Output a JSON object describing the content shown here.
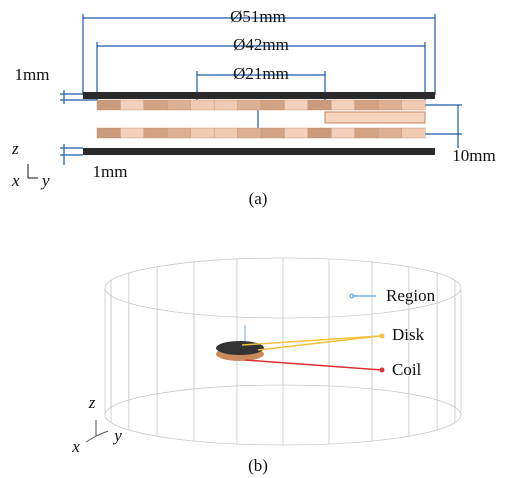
{
  "panel_a": {
    "dimensions": {
      "outer_diameter": "Ø51mm",
      "mid_diameter": "Ø42mm",
      "inner_diameter": "Ø21mm",
      "top_thickness": "1mm",
      "gap": "10mm",
      "bottom_thickness": "1mm"
    },
    "axes": {
      "z": "z",
      "x": "x",
      "y": "y"
    },
    "caption": "(a)"
  },
  "panel_b": {
    "labels": {
      "region": "Region",
      "disk": "Disk",
      "coil": "Coil"
    },
    "axes": {
      "z": "z",
      "x": "x",
      "y": "y"
    },
    "caption": "(b)"
  }
}
